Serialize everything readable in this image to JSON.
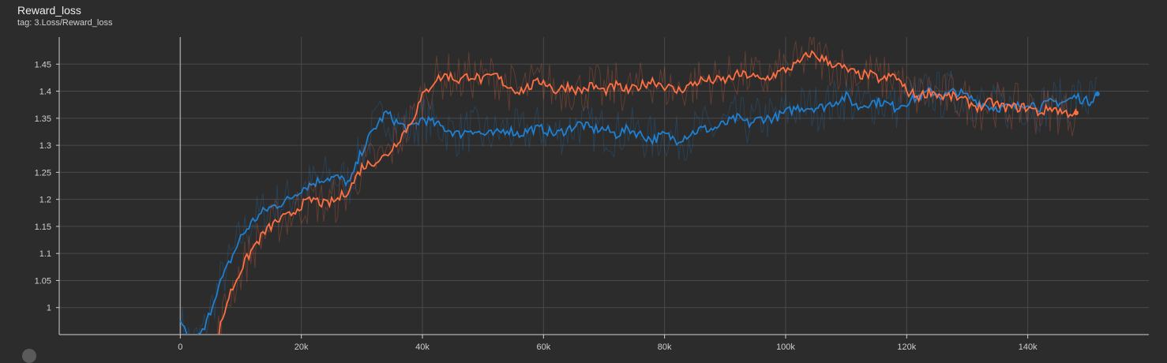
{
  "panel": {
    "title": "Reward_loss",
    "tag": "tag: 3.Loss/Reward_loss"
  },
  "colors": {
    "background": "#2c2c2c",
    "grid": "#4a4a4a",
    "series_blue": "#1f7fd0",
    "series_orange": "#ff7043"
  },
  "chart_data": {
    "type": "line",
    "title": "Reward_loss",
    "xlabel": "",
    "ylabel": "",
    "xlim": [
      -20000,
      160000
    ],
    "ylim": [
      0.95,
      1.5
    ],
    "x_ticks": [
      0,
      20000,
      40000,
      60000,
      80000,
      100000,
      120000,
      140000
    ],
    "x_tick_labels": [
      "0",
      "20k",
      "40k",
      "60k",
      "80k",
      "100k",
      "120k",
      "140k"
    ],
    "y_ticks": [
      1,
      1.05,
      1.1,
      1.15,
      1.2,
      1.25,
      1.3,
      1.35,
      1.4,
      1.45
    ],
    "y_tick_labels": [
      "1",
      "1.05",
      "1.1",
      "1.15",
      "1.2",
      "1.25",
      "1.3",
      "1.35",
      "1.4",
      "1.45"
    ],
    "grid": true,
    "legend": "none",
    "series": [
      {
        "color": "#1f7fd0",
        "x": [
          0,
          2000,
          4000,
          6000,
          8000,
          10000,
          12000,
          14000,
          16000,
          18000,
          20000,
          22000,
          24000,
          26000,
          28000,
          30000,
          32000,
          34000,
          36000,
          38000,
          40000,
          42000,
          44000,
          46000,
          48000,
          50000,
          52000,
          54000,
          56000,
          58000,
          60000,
          62000,
          64000,
          66000,
          68000,
          70000,
          72000,
          74000,
          76000,
          78000,
          80000,
          82000,
          84000,
          86000,
          88000,
          90000,
          92000,
          94000,
          96000,
          98000,
          100000,
          102000,
          104000,
          106000,
          108000,
          110000,
          112000,
          114000,
          116000,
          118000,
          120000,
          122000,
          124000,
          126000,
          128000,
          130000,
          132000,
          134000,
          136000,
          138000,
          140000,
          142000,
          144000,
          146000,
          148000,
          150000,
          151500
        ],
        "values": [
          0.97,
          0.93,
          0.96,
          1.03,
          1.08,
          1.13,
          1.16,
          1.18,
          1.19,
          1.2,
          1.22,
          1.23,
          1.24,
          1.24,
          1.23,
          1.29,
          1.33,
          1.36,
          1.34,
          1.33,
          1.35,
          1.34,
          1.33,
          1.32,
          1.33,
          1.32,
          1.32,
          1.33,
          1.32,
          1.33,
          1.33,
          1.32,
          1.33,
          1.34,
          1.33,
          1.33,
          1.32,
          1.33,
          1.32,
          1.31,
          1.32,
          1.31,
          1.32,
          1.33,
          1.33,
          1.34,
          1.35,
          1.34,
          1.35,
          1.35,
          1.36,
          1.37,
          1.37,
          1.37,
          1.38,
          1.39,
          1.37,
          1.38,
          1.38,
          1.37,
          1.38,
          1.39,
          1.4,
          1.39,
          1.4,
          1.39,
          1.38,
          1.37,
          1.37,
          1.37,
          1.38,
          1.37,
          1.38,
          1.38,
          1.39,
          1.38,
          1.395
        ]
      },
      {
        "color": "#ff7043",
        "x": [
          6000,
          8000,
          10000,
          12000,
          14000,
          16000,
          18000,
          20000,
          22000,
          24000,
          26000,
          28000,
          30000,
          32000,
          34000,
          36000,
          38000,
          40000,
          42000,
          44000,
          46000,
          48000,
          50000,
          52000,
          54000,
          56000,
          58000,
          60000,
          62000,
          64000,
          66000,
          68000,
          70000,
          72000,
          74000,
          76000,
          78000,
          80000,
          82000,
          84000,
          86000,
          88000,
          90000,
          92000,
          94000,
          96000,
          98000,
          100000,
          102000,
          104000,
          106000,
          108000,
          110000,
          112000,
          114000,
          116000,
          118000,
          120000,
          122000,
          124000,
          126000,
          128000,
          130000,
          132000,
          134000,
          136000,
          138000,
          140000,
          142000,
          144000,
          146000,
          148000
        ],
        "values": [
          0.94,
          1.02,
          1.07,
          1.11,
          1.14,
          1.16,
          1.17,
          1.19,
          1.2,
          1.19,
          1.2,
          1.22,
          1.26,
          1.27,
          1.28,
          1.31,
          1.34,
          1.39,
          1.42,
          1.43,
          1.42,
          1.43,
          1.42,
          1.43,
          1.41,
          1.4,
          1.41,
          1.42,
          1.4,
          1.41,
          1.4,
          1.41,
          1.4,
          1.41,
          1.4,
          1.41,
          1.42,
          1.41,
          1.4,
          1.41,
          1.42,
          1.42,
          1.42,
          1.43,
          1.43,
          1.42,
          1.43,
          1.44,
          1.45,
          1.47,
          1.46,
          1.45,
          1.44,
          1.43,
          1.43,
          1.42,
          1.43,
          1.4,
          1.39,
          1.4,
          1.39,
          1.39,
          1.38,
          1.37,
          1.38,
          1.37,
          1.37,
          1.37,
          1.36,
          1.37,
          1.36,
          1.36
        ]
      }
    ]
  }
}
